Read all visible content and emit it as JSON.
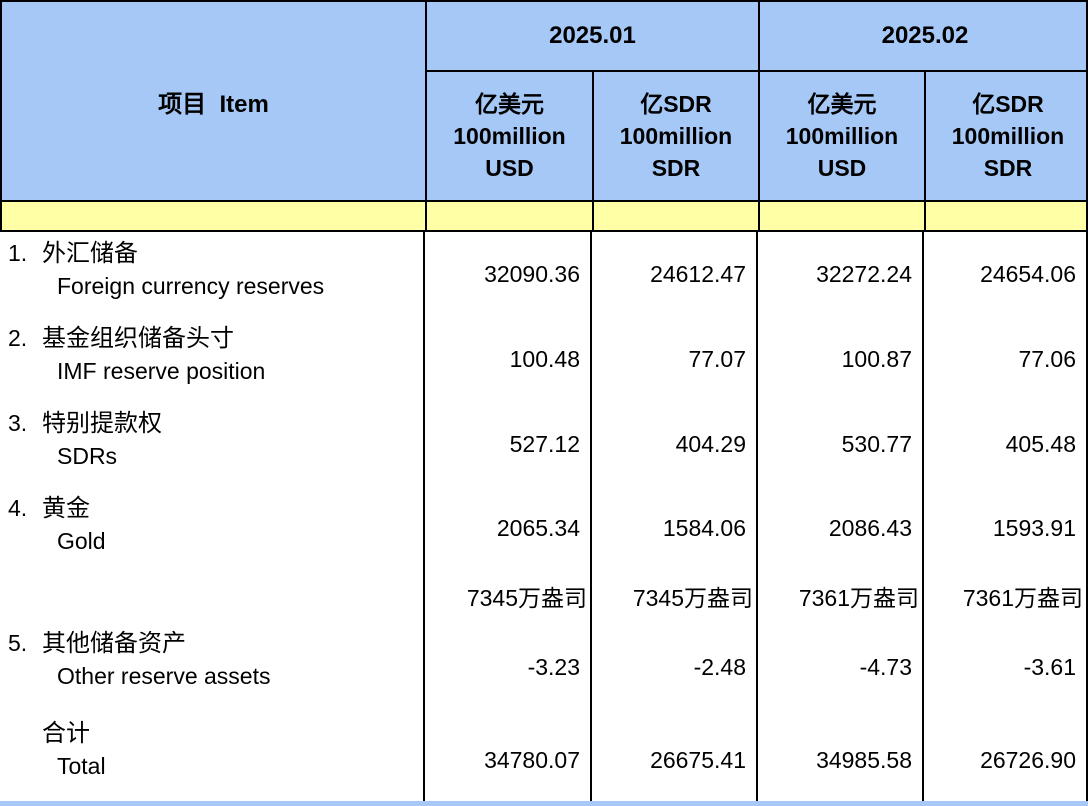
{
  "table": {
    "item_header": "项目  Item",
    "periods": [
      {
        "label": "2025.01"
      },
      {
        "label": "2025.02"
      }
    ],
    "unit_headers": [
      {
        "line1": "亿美元",
        "line2": "100million",
        "line3": "USD"
      },
      {
        "line1": "亿SDR",
        "line2": "100million",
        "line3": "SDR"
      },
      {
        "line1": "亿美元",
        "line2": "100million",
        "line3": "USD"
      },
      {
        "line1": "亿SDR",
        "line2": "100million",
        "line3": "SDR"
      }
    ],
    "rows": [
      {
        "no": "1.",
        "zh": "外汇储备",
        "en": "Foreign currency reserves",
        "values": [
          "32090.36",
          "24612.47",
          "32272.24",
          "24654.06"
        ]
      },
      {
        "no": "2.",
        "zh": "基金组织储备头寸",
        "en": "IMF reserve position",
        "values": [
          "100.48",
          "77.07",
          "100.87",
          "77.06"
        ]
      },
      {
        "no": "3.",
        "zh": "特别提款权",
        "en": "SDRs",
        "values": [
          "527.12",
          "404.29",
          "530.77",
          "405.48"
        ]
      },
      {
        "no": "4.",
        "zh": "黄金",
        "en": "Gold",
        "values": [
          "2065.34",
          "1584.06",
          "2086.43",
          "1593.91"
        ]
      },
      {
        "no": "",
        "zh": "",
        "en": "",
        "values": [
          "7345万盎司",
          "7345万盎司",
          "7361万盎司",
          "7361万盎司"
        ]
      },
      {
        "no": "5.",
        "zh": "其他储备资产",
        "en": "Other reserve assets",
        "values": [
          "-3.23",
          "-2.48",
          "-4.73",
          "-3.61"
        ]
      },
      {
        "no": "",
        "zh": "合计",
        "en": "Total",
        "values": [
          "34780.07",
          "26675.41",
          "34985.58",
          "26726.90"
        ]
      }
    ],
    "colors": {
      "header_bg": "#a6c8f7",
      "separator_bg": "#ffffa6",
      "border": "#000000"
    }
  }
}
